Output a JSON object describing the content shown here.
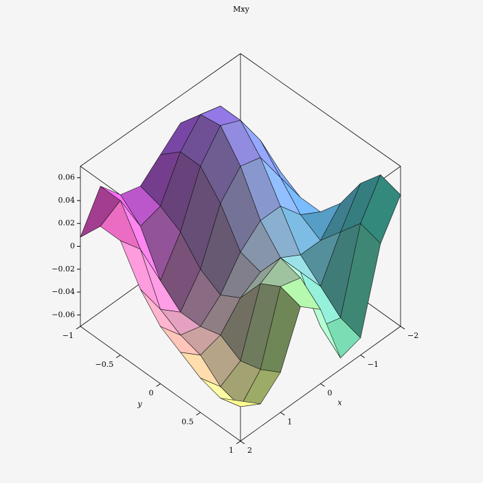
{
  "chart_data": {
    "type": "surface",
    "title": "Mxy",
    "x_label": "x",
    "y_label": "y",
    "x": [
      -2,
      -1.5,
      -1,
      -0.5,
      0,
      0.5,
      1,
      1.5,
      2
    ],
    "y": [
      -1,
      -0.75,
      -0.5,
      -0.25,
      0,
      0.25,
      0.5,
      0.75,
      1
    ],
    "z": [
      [
        0.01,
        0.02,
        0.04,
        0.045,
        0.03,
        0.015,
        0.02,
        0.04,
        0.008
      ],
      [
        0.0,
        0.03,
        0.06,
        0.065,
        0.045,
        0.01,
        0.005,
        0.04,
        0.03
      ],
      [
        -0.01,
        0.03,
        0.06,
        0.068,
        0.045,
        0.0,
        -0.03,
        0.01,
        0.03
      ],
      [
        -0.02,
        0.01,
        0.04,
        0.045,
        0.025,
        -0.02,
        -0.045,
        -0.03,
        0.0
      ],
      [
        -0.02,
        -0.01,
        0.01,
        0.01,
        -0.005,
        -0.03,
        -0.045,
        -0.04,
        -0.02
      ],
      [
        0.0,
        -0.02,
        -0.02,
        -0.01,
        -0.01,
        -0.02,
        -0.04,
        -0.045,
        -0.03
      ],
      [
        0.03,
        0.0,
        -0.035,
        -0.01,
        0.015,
        0.005,
        -0.05,
        -0.06,
        -0.04
      ],
      [
        0.05,
        0.02,
        -0.05,
        -0.045,
        0.01,
        0.015,
        -0.045,
        -0.065,
        -0.045
      ],
      [
        0.045,
        0.015,
        -0.055,
        -0.06,
        -0.005,
        0.01,
        -0.035,
        -0.05,
        -0.035
      ]
    ],
    "xlim": [
      -2,
      2
    ],
    "ylim": [
      -1,
      1
    ],
    "zlim": [
      -0.07,
      0.07
    ],
    "xticks": [
      {
        "value": -2,
        "label": "−2"
      },
      {
        "value": -1,
        "label": "−1"
      },
      0,
      1,
      2
    ],
    "yticks": [
      {
        "value": -1,
        "label": "−1"
      },
      {
        "value": -0.5,
        "label": "−0.5"
      },
      0,
      0.5,
      1
    ],
    "zticks": [
      {
        "value": -0.06,
        "label": "−0.06"
      },
      {
        "value": -0.04,
        "label": "−0.04"
      },
      {
        "value": -0.02,
        "label": "−0.02"
      },
      0,
      0.02,
      0.04,
      0.06
    ]
  }
}
